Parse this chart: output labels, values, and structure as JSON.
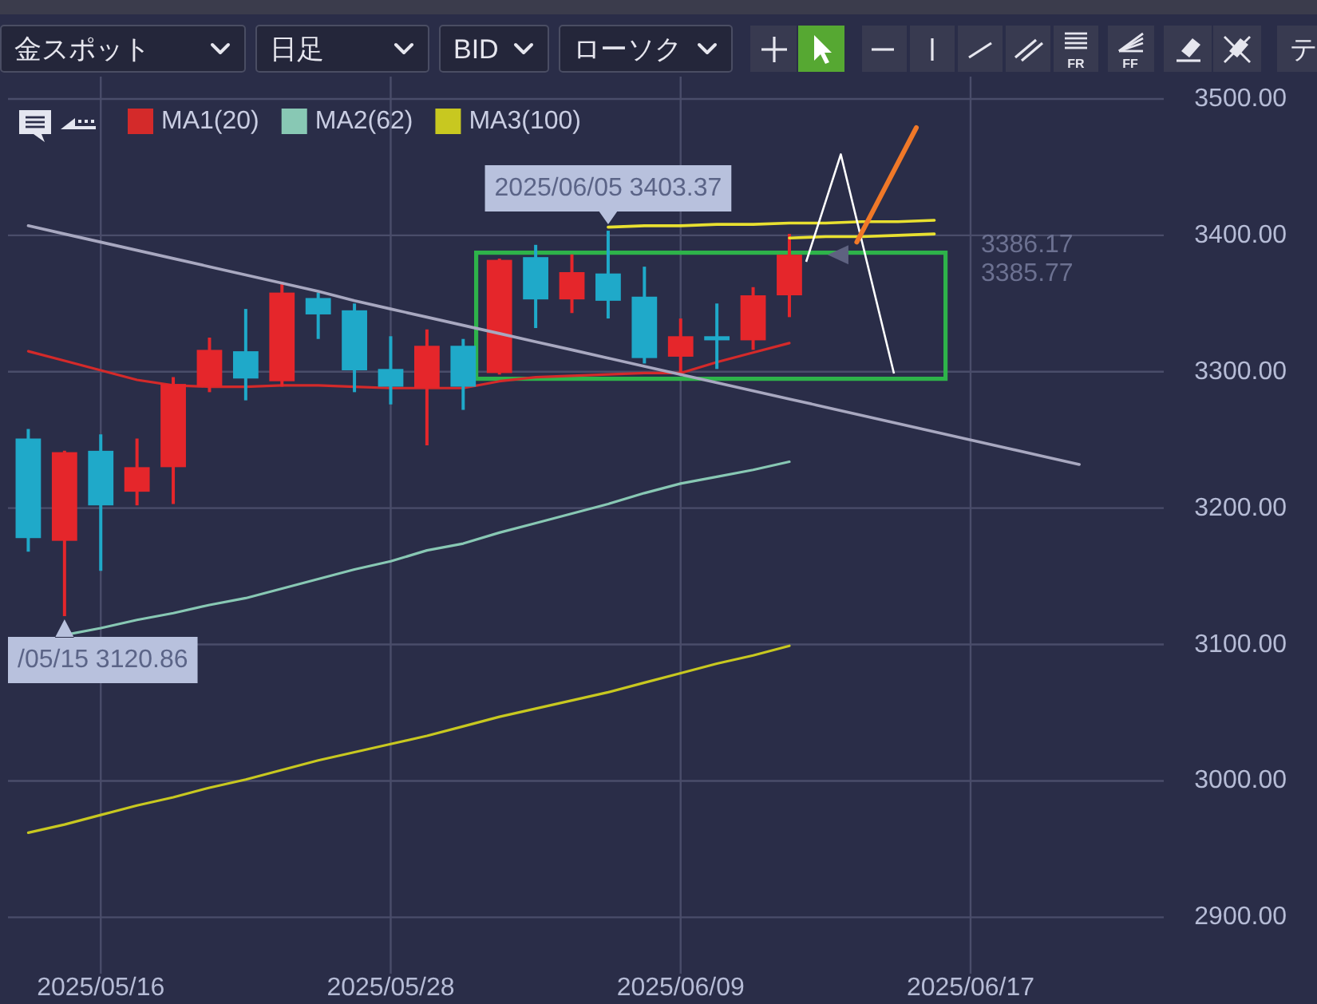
{
  "chart_data": {
    "type": "candlestick",
    "title": "金スポット",
    "annotations": [
      "日足",
      "BID",
      "ローソク",
      "FR",
      "FF",
      "テ",
      {
        "text": "2025/06/05 3403.37",
        "y": 3403.37
      },
      "/05/15 3120.86",
      "3386.17",
      "3385.77"
    ],
    "categories": [
      null,
      null,
      "2025/05/16",
      null,
      null,
      null,
      null,
      null,
      null,
      null,
      "2025/05/28",
      null,
      null,
      null,
      null,
      null,
      null,
      null,
      "2025/06/09",
      null,
      null,
      null,
      null,
      null,
      null,
      null,
      "2025/06/17",
      null,
      null,
      null,
      null,
      null
    ],
    "ylim": [
      2861,
      3514
    ],
    "yticks": [
      {
        "value": 2900,
        "label": "2900.00"
      },
      {
        "value": 3000,
        "label": "3000.00"
      },
      {
        "value": 3100,
        "label": "3100.00"
      },
      {
        "value": 3200,
        "label": "3200.00"
      },
      {
        "value": 3300,
        "label": "3300.00"
      },
      {
        "value": 3400,
        "label": "3400.00"
      },
      {
        "value": 3500,
        "label": "3500.00"
      }
    ],
    "grid": true,
    "legend": "top left",
    "ohlc": [
      [
        3251,
        3258,
        3168,
        3178
      ],
      [
        3176,
        3242,
        3120.86,
        3241
      ],
      [
        3242,
        3254,
        3154,
        3202
      ],
      [
        3212,
        3251,
        3202,
        3230
      ],
      [
        3230,
        3296,
        3203,
        3291
      ],
      [
        3289,
        3325,
        3285,
        3316
      ],
      [
        3315,
        3346,
        3279,
        3295
      ],
      [
        3293,
        3366,
        3289,
        3358
      ],
      [
        3354,
        3358,
        3324,
        3342
      ],
      [
        3345,
        3350,
        3285,
        3301
      ],
      [
        3302,
        3326,
        3276,
        3289
      ],
      [
        3288,
        3331,
        3246,
        3319
      ],
      [
        3319,
        3324,
        3272,
        3289
      ],
      [
        3299,
        3383,
        3298,
        3382
      ],
      [
        3384,
        3393,
        3332,
        3353
      ],
      [
        3353,
        3386,
        3343,
        3373
      ],
      [
        3372,
        3403.37,
        3339,
        3352
      ],
      [
        3355,
        3377,
        3306,
        3310
      ],
      [
        3311,
        3339,
        3298,
        3326
      ],
      [
        3326,
        3350,
        3302,
        3323
      ],
      [
        3323,
        3362,
        3316,
        3356
      ],
      [
        3356,
        3401,
        3340,
        3385.77
      ],
      null,
      null,
      null,
      null,
      null,
      null,
      null,
      null,
      null,
      null
    ],
    "colors": [
      "#1fa9c9",
      "#e5262b",
      "#1fa9c9",
      "#e5262b",
      "#e5262b",
      "#e5262b",
      "#1fa9c9",
      "#e5262b",
      "#1fa9c9",
      "#1fa9c9",
      "#1fa9c9",
      "#e5262b",
      "#1fa9c9",
      "#e5262b",
      "#1fa9c9",
      "#e5262b",
      "#1fa9c9",
      "#1fa9c9",
      "#e5262b",
      "#1fa9c9",
      "#e5262b",
      "#e5262b",
      null,
      null,
      null,
      null,
      null,
      null,
      null,
      null,
      null,
      null
    ],
    "series": [
      {
        "name": "MA1(20)",
        "type": "line",
        "color": "#d42a2a",
        "values": [
          3315,
          3308,
          3301,
          3294,
          3290,
          3289,
          3289,
          3290,
          3290,
          3289,
          3288,
          3288,
          3288,
          3293,
          3296,
          3297,
          3298,
          3299,
          3299,
          3307,
          3314,
          3321,
          null,
          null,
          null,
          null,
          null,
          null,
          null,
          null,
          null,
          null
        ]
      },
      {
        "name": "MA2(62)",
        "type": "line",
        "color": "#88c8b4",
        "values": [
          null,
          3107,
          3112,
          3118,
          3123,
          3129,
          3134,
          3141,
          3148,
          3155,
          3161,
          3169,
          3174,
          3182,
          3189,
          3196,
          3203,
          3211,
          3218,
          3223,
          3228,
          3234,
          null,
          null,
          null,
          null,
          null,
          null,
          null,
          null,
          null,
          null
        ]
      },
      {
        "name": "MA3(100)",
        "type": "line",
        "color": "#c8c820",
        "values": [
          2962,
          2968,
          2975,
          2982,
          2988,
          2995,
          3001,
          3008,
          3015,
          3021,
          3027,
          3033,
          3040,
          3047,
          3053,
          3059,
          3065,
          3072,
          3079,
          3086,
          3092,
          3099,
          null,
          null,
          null,
          null,
          null,
          null,
          null,
          null,
          null,
          null
        ]
      },
      {
        "type": "line",
        "color": "#a8a8c0",
        "values": [
          3407,
          3401,
          3395,
          3389,
          3383,
          3377,
          3371,
          3365,
          3359,
          3352,
          3346,
          3340,
          3334,
          3328,
          3322,
          3316,
          3310,
          3304,
          3298,
          3292,
          3286,
          3280,
          3274,
          3268,
          3262,
          3256,
          3250,
          3244,
          3238,
          3232,
          null,
          null
        ]
      },
      {
        "type": "line",
        "color": "#e8e030",
        "values": [
          null,
          null,
          null,
          null,
          null,
          null,
          null,
          null,
          null,
          null,
          null,
          null,
          null,
          null,
          null,
          null,
          3406,
          3407,
          3407,
          3408,
          3408,
          3409,
          3409,
          3410,
          3410,
          3411,
          null,
          null,
          null,
          null,
          null,
          null
        ]
      },
      {
        "type": "line",
        "color": "#e8e030",
        "values": [
          null,
          null,
          null,
          null,
          null,
          null,
          null,
          null,
          null,
          null,
          null,
          null,
          null,
          null,
          null,
          null,
          null,
          null,
          null,
          null,
          null,
          3398,
          3399,
          3399,
          3400,
          3401,
          null,
          null,
          null,
          null,
          null,
          null
        ]
      }
    ]
  }
}
